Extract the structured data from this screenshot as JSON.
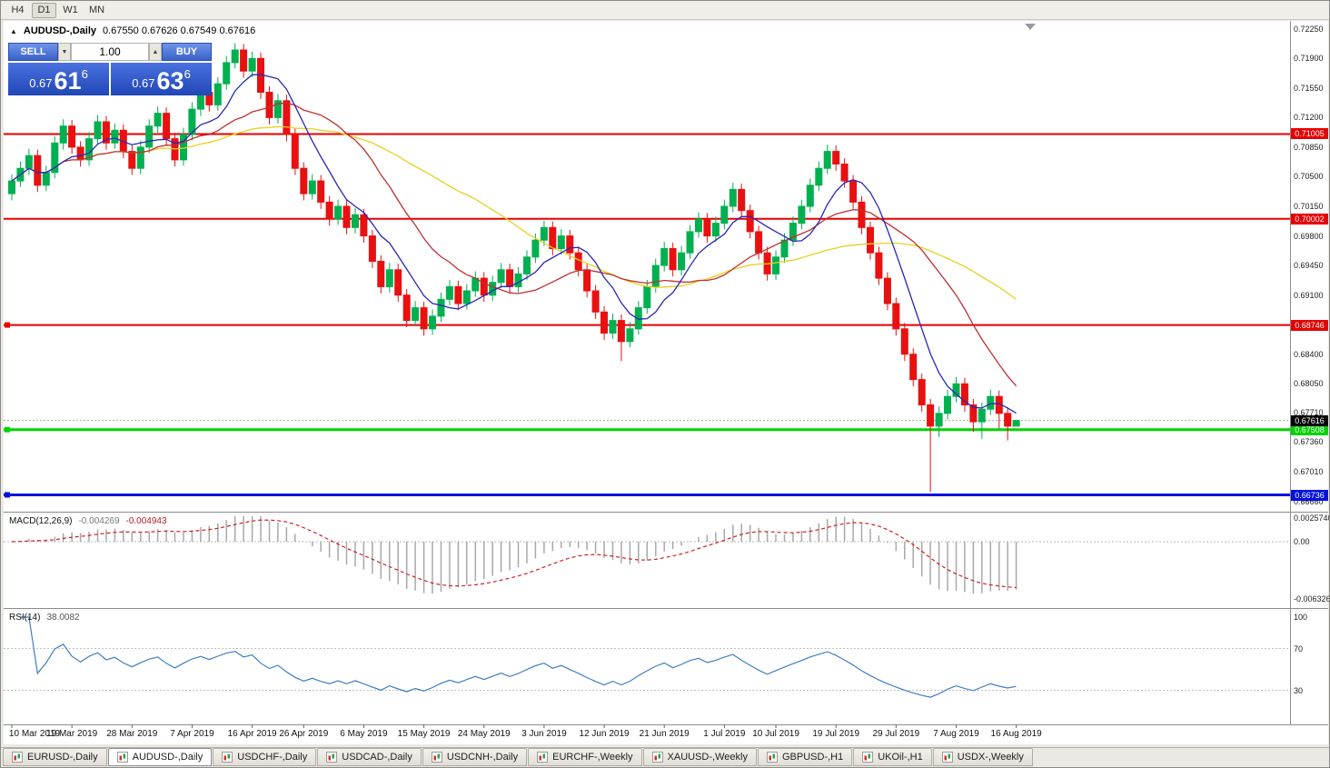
{
  "window": {
    "title_symbol": "AUDUSD-,Daily",
    "title_ohlc": "0.67550 0.67626 0.67549 0.67616"
  },
  "icons": {
    "panel_collapse": "▲",
    "volume_down": "▼",
    "volume_up": "▲"
  },
  "toolbar": {
    "timeframes": [
      {
        "label": "H4",
        "active": false
      },
      {
        "label": "D1",
        "active": true
      },
      {
        "label": "W1",
        "active": false
      },
      {
        "label": "MN",
        "active": false
      }
    ]
  },
  "trade_panel": {
    "sell_label": "SELL",
    "buy_label": "BUY",
    "volume_value": "1.00",
    "sell_price": {
      "prefix": "0.67",
      "main": "61",
      "fraction": "6"
    },
    "buy_price": {
      "prefix": "0.67",
      "main": "63",
      "fraction": "6"
    }
  },
  "chart_data": [
    {
      "type": "candlestick",
      "title": "AUDUSD-,Daily",
      "x_labels": [
        "10 Mar 2019",
        "19 Mar 2019",
        "28 Mar 2019",
        "7 Apr 2019",
        "16 Apr 2019",
        "26 Apr 2019",
        "6 May 2019",
        "15 May 2019",
        "24 May 2019",
        "3 Jun 2019",
        "12 Jun 2019",
        "21 Jun 2019",
        "1 Jul 2019",
        "10 Jul 2019",
        "19 Jul 2019",
        "29 Jul 2019",
        "7 Aug 2019",
        "16 Aug 2019"
      ],
      "y_ticks": [
        "0.72250",
        "0.71900",
        "0.71550",
        "0.71200",
        "0.70850",
        "0.70500",
        "0.70150",
        "0.69800",
        "0.69450",
        "0.69100",
        "0.68750",
        "0.68400",
        "0.68050",
        "0.67710",
        "0.67360",
        "0.67010",
        "0.66660"
      ],
      "bull_color": "#00B050",
      "bear_color": "#E81010",
      "moving_averages": [
        {
          "period": 34,
          "color": "#E8D01E"
        },
        {
          "period": 17,
          "color": "#C03030"
        },
        {
          "period": 7,
          "color": "#2828B8"
        }
      ],
      "hlines": [
        {
          "price": 0.71005,
          "label": "0.71005",
          "color": "#E60000",
          "width": 2,
          "handle": false
        },
        {
          "price": 0.70002,
          "label": "0.70002",
          "color": "#E60000",
          "width": 2,
          "handle": false
        },
        {
          "price": 0.68746,
          "label": "0.68746",
          "color": "#E60000",
          "width": 2,
          "handle": true
        },
        {
          "price": 0.67508,
          "label": "0.67508",
          "color": "#00D400",
          "width": 3,
          "handle": true
        },
        {
          "price": 0.66736,
          "label": "0.66736",
          "color": "#0010E0",
          "width": 3,
          "handle": true
        }
      ],
      "current_price": {
        "value": 0.67616,
        "label": "0.67616",
        "line_color": "#90B890",
        "tag_bg": "#000000"
      },
      "candles": [
        [
          0.703,
          0.7053,
          0.7022,
          0.7045
        ],
        [
          0.7045,
          0.7068,
          0.7038,
          0.706
        ],
        [
          0.706,
          0.7083,
          0.7052,
          0.7075
        ],
        [
          0.7075,
          0.7082,
          0.7032,
          0.704
        ],
        [
          0.704,
          0.7063,
          0.7033,
          0.7055
        ],
        [
          0.7055,
          0.7098,
          0.7048,
          0.709
        ],
        [
          0.709,
          0.7118,
          0.7082,
          0.711
        ],
        [
          0.711,
          0.7117,
          0.7077,
          0.7085
        ],
        [
          0.7085,
          0.7092,
          0.7062,
          0.707
        ],
        [
          0.707,
          0.7103,
          0.7063,
          0.7095
        ],
        [
          0.7095,
          0.7123,
          0.7088,
          0.7115
        ],
        [
          0.7115,
          0.7122,
          0.7082,
          0.709
        ],
        [
          0.709,
          0.7113,
          0.7083,
          0.7105
        ],
        [
          0.7105,
          0.7112,
          0.7072,
          0.708
        ],
        [
          0.708,
          0.7087,
          0.7052,
          0.706
        ],
        [
          0.706,
          0.7093,
          0.7053,
          0.7085
        ],
        [
          0.7085,
          0.7118,
          0.7078,
          0.711
        ],
        [
          0.711,
          0.7133,
          0.7102,
          0.7125
        ],
        [
          0.7125,
          0.7132,
          0.7087,
          0.7095
        ],
        [
          0.7095,
          0.7102,
          0.7062,
          0.707
        ],
        [
          0.707,
          0.7108,
          0.7063,
          0.71
        ],
        [
          0.71,
          0.7138,
          0.7093,
          0.713
        ],
        [
          0.713,
          0.7158,
          0.7122,
          0.715
        ],
        [
          0.715,
          0.7157,
          0.7127,
          0.7135
        ],
        [
          0.7135,
          0.7168,
          0.7128,
          0.716
        ],
        [
          0.716,
          0.7193,
          0.7153,
          0.7185
        ],
        [
          0.7185,
          0.7208,
          0.7178,
          0.72
        ],
        [
          0.72,
          0.7207,
          0.7167,
          0.7175
        ],
        [
          0.7175,
          0.7198,
          0.7168,
          0.719
        ],
        [
          0.719,
          0.7197,
          0.7142,
          0.715
        ],
        [
          0.715,
          0.7157,
          0.7112,
          0.712
        ],
        [
          0.712,
          0.7148,
          0.7113,
          0.714
        ],
        [
          0.714,
          0.7147,
          0.7092,
          0.71
        ],
        [
          0.71,
          0.7107,
          0.7052,
          0.706
        ],
        [
          0.706,
          0.7067,
          0.7022,
          0.703
        ],
        [
          0.703,
          0.7053,
          0.7023,
          0.7045
        ],
        [
          0.7045,
          0.7052,
          0.7012,
          0.702
        ],
        [
          0.702,
          0.7027,
          0.6992,
          0.7
        ],
        [
          0.7,
          0.7023,
          0.6993,
          0.7015
        ],
        [
          0.7015,
          0.7022,
          0.6982,
          0.699
        ],
        [
          0.699,
          0.7013,
          0.6983,
          0.7005
        ],
        [
          0.7005,
          0.7012,
          0.6972,
          0.698
        ],
        [
          0.698,
          0.6987,
          0.6942,
          0.695
        ],
        [
          0.695,
          0.6957,
          0.6912,
          0.692
        ],
        [
          0.692,
          0.6948,
          0.6913,
          0.694
        ],
        [
          0.694,
          0.6947,
          0.6902,
          0.691
        ],
        [
          0.691,
          0.6917,
          0.6872,
          0.688
        ],
        [
          0.688,
          0.6903,
          0.6873,
          0.6895
        ],
        [
          0.6895,
          0.6902,
          0.6862,
          0.687
        ],
        [
          0.687,
          0.6893,
          0.6863,
          0.6885
        ],
        [
          0.6885,
          0.6913,
          0.6878,
          0.6905
        ],
        [
          0.6905,
          0.6928,
          0.6898,
          0.692
        ],
        [
          0.692,
          0.6927,
          0.6892,
          0.69
        ],
        [
          0.69,
          0.6923,
          0.6893,
          0.6915
        ],
        [
          0.6915,
          0.6938,
          0.6908,
          0.693
        ],
        [
          0.693,
          0.6937,
          0.6902,
          0.691
        ],
        [
          0.691,
          0.6933,
          0.6903,
          0.6925
        ],
        [
          0.6925,
          0.6948,
          0.6918,
          0.694
        ],
        [
          0.694,
          0.6947,
          0.6912,
          0.692
        ],
        [
          0.692,
          0.6943,
          0.6913,
          0.6935
        ],
        [
          0.6935,
          0.6963,
          0.6928,
          0.6955
        ],
        [
          0.6955,
          0.6983,
          0.6948,
          0.6975
        ],
        [
          0.6975,
          0.6998,
          0.6968,
          0.699
        ],
        [
          0.699,
          0.6997,
          0.6957,
          0.6965
        ],
        [
          0.6965,
          0.6988,
          0.6958,
          0.698
        ],
        [
          0.698,
          0.6987,
          0.6952,
          0.696
        ],
        [
          0.696,
          0.6967,
          0.6932,
          0.694
        ],
        [
          0.694,
          0.6947,
          0.6907,
          0.6915
        ],
        [
          0.6915,
          0.6922,
          0.6882,
          0.689
        ],
        [
          0.689,
          0.6897,
          0.6857,
          0.6865
        ],
        [
          0.6865,
          0.6888,
          0.6858,
          0.688
        ],
        [
          0.688,
          0.6887,
          0.6832,
          0.6855
        ],
        [
          0.6855,
          0.6878,
          0.6848,
          0.687
        ],
        [
          0.687,
          0.6903,
          0.6863,
          0.6895
        ],
        [
          0.6895,
          0.6928,
          0.6888,
          0.692
        ],
        [
          0.692,
          0.6953,
          0.6913,
          0.6945
        ],
        [
          0.6945,
          0.6973,
          0.6938,
          0.6965
        ],
        [
          0.6965,
          0.6972,
          0.6932,
          0.694
        ],
        [
          0.694,
          0.6968,
          0.6933,
          0.696
        ],
        [
          0.696,
          0.6993,
          0.6953,
          0.6985
        ],
        [
          0.6985,
          0.7008,
          0.6978,
          0.7
        ],
        [
          0.7,
          0.7007,
          0.6972,
          0.698
        ],
        [
          0.698,
          0.7003,
          0.6973,
          0.6995
        ],
        [
          0.6995,
          0.7023,
          0.6988,
          0.7015
        ],
        [
          0.7015,
          0.7043,
          0.7008,
          0.7035
        ],
        [
          0.7035,
          0.7042,
          0.7002,
          0.701
        ],
        [
          0.701,
          0.7017,
          0.6977,
          0.6985
        ],
        [
          0.6985,
          0.6992,
          0.6952,
          0.696
        ],
        [
          0.696,
          0.6967,
          0.6927,
          0.6935
        ],
        [
          0.6935,
          0.6963,
          0.6928,
          0.6955
        ],
        [
          0.6955,
          0.6983,
          0.6948,
          0.6975
        ],
        [
          0.6975,
          0.7003,
          0.6968,
          0.6995
        ],
        [
          0.6995,
          0.7023,
          0.6988,
          0.7015
        ],
        [
          0.7015,
          0.7048,
          0.7008,
          0.704
        ],
        [
          0.704,
          0.7068,
          0.7033,
          0.706
        ],
        [
          0.706,
          0.7088,
          0.7053,
          0.708
        ],
        [
          0.708,
          0.7087,
          0.7057,
          0.7065
        ],
        [
          0.7065,
          0.7072,
          0.7037,
          0.7045
        ],
        [
          0.7045,
          0.7052,
          0.7012,
          0.702
        ],
        [
          0.702,
          0.7027,
          0.6982,
          0.699
        ],
        [
          0.699,
          0.6997,
          0.6952,
          0.696
        ],
        [
          0.696,
          0.6967,
          0.6922,
          0.693
        ],
        [
          0.693,
          0.6937,
          0.6892,
          0.69
        ],
        [
          0.69,
          0.6907,
          0.6862,
          0.687
        ],
        [
          0.687,
          0.6877,
          0.6832,
          0.684
        ],
        [
          0.684,
          0.6847,
          0.6802,
          0.681
        ],
        [
          0.681,
          0.6817,
          0.6772,
          0.678
        ],
        [
          0.678,
          0.6787,
          0.6677,
          0.6755
        ],
        [
          0.6755,
          0.6778,
          0.6742,
          0.677
        ],
        [
          0.677,
          0.6798,
          0.6763,
          0.679
        ],
        [
          0.679,
          0.6813,
          0.6783,
          0.6805
        ],
        [
          0.6805,
          0.6812,
          0.6772,
          0.678
        ],
        [
          0.678,
          0.6787,
          0.6748,
          0.676
        ],
        [
          0.676,
          0.6783,
          0.674,
          0.6775
        ],
        [
          0.6775,
          0.6798,
          0.6768,
          0.679
        ],
        [
          0.679,
          0.6797,
          0.6752,
          0.677
        ],
        [
          0.677,
          0.6777,
          0.6738,
          0.6755
        ],
        [
          0.6755,
          0.67626,
          0.67549,
          0.67616
        ]
      ]
    },
    {
      "type": "macd",
      "label": "MACD(12,26,9)",
      "value_main": "-0.004269",
      "value_signal": "-0.004943",
      "params": {
        "fast": 12,
        "slow": 26,
        "signal": 9
      },
      "y_ticks": [
        {
          "label": "0.0025740",
          "value": 0.002574
        },
        {
          "label": "0.00",
          "value": 0
        },
        {
          "label": "-0.0063260",
          "value": -0.006326
        }
      ],
      "histogram_color": "#A8A8A8",
      "signal_color": "#CC2222"
    },
    {
      "type": "line",
      "label": "RSI(14)",
      "value": "38.0082",
      "period": 14,
      "levels": [
        70,
        30
      ],
      "y_ticks": [
        {
          "label": "100",
          "value": 100
        },
        {
          "label": "70",
          "value": 70
        },
        {
          "label": "30",
          "value": 30
        }
      ],
      "line_color": "#3E7FC1"
    }
  ],
  "tabs": [
    {
      "label": "EURUSD-,Daily",
      "active": false
    },
    {
      "label": "AUDUSD-,Daily",
      "active": true
    },
    {
      "label": "USDCHF-,Daily",
      "active": false
    },
    {
      "label": "USDCAD-,Daily",
      "active": false
    },
    {
      "label": "USDCNH-,Daily",
      "active": false
    },
    {
      "label": "EURCHF-,Weekly",
      "active": false
    },
    {
      "label": "XAUUSD-,Weekly",
      "active": false
    },
    {
      "label": "GBPUSD-,H1",
      "active": false
    },
    {
      "label": "UKOil-,H1",
      "active": false
    },
    {
      "label": "USDX-,Weekly",
      "active": false
    }
  ]
}
